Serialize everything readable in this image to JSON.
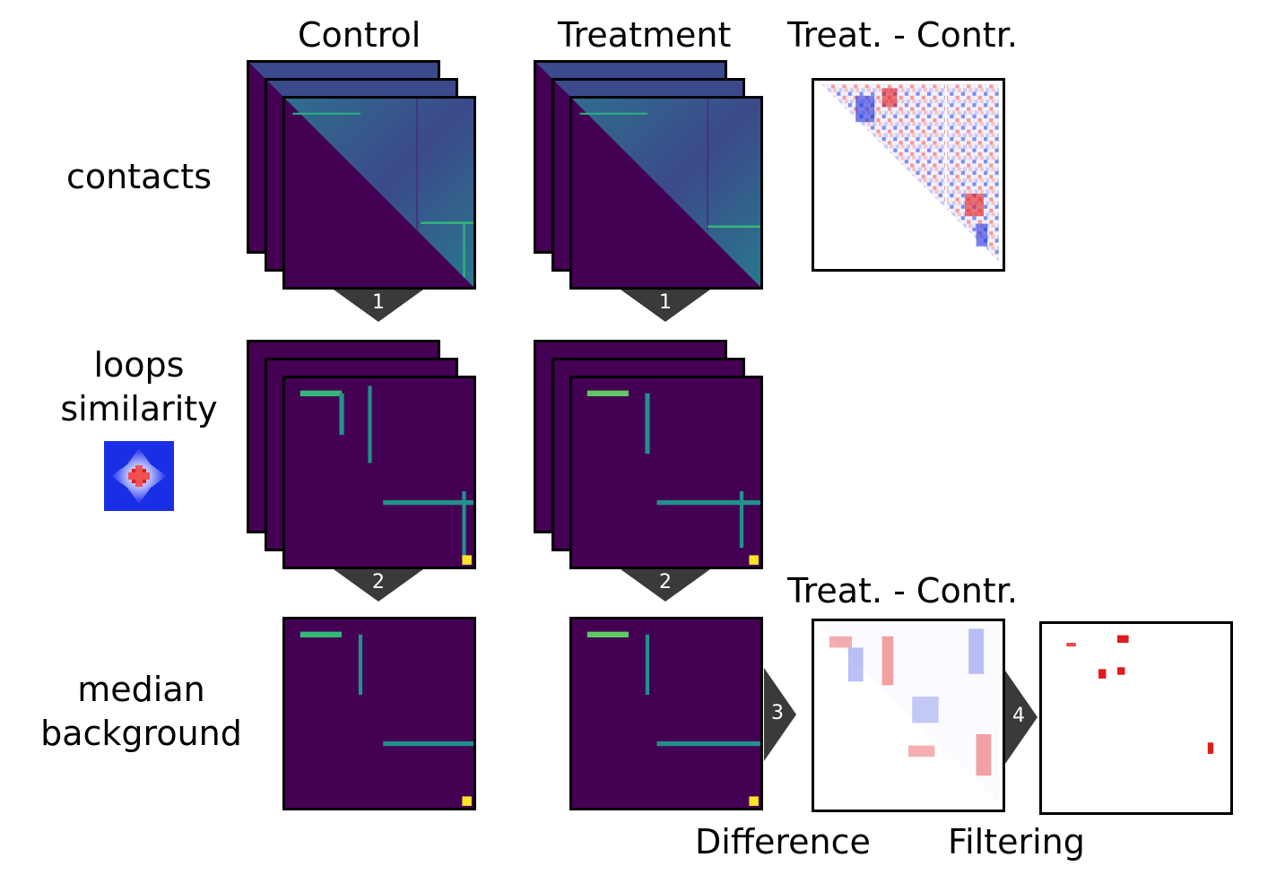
{
  "columns": {
    "control": "Control",
    "treatment": "Treatment",
    "diff_top": "Treat. - Contr.",
    "diff_bottom": "Treat. - Contr."
  },
  "rows": {
    "contacts": "contacts",
    "loops_line1": "loops",
    "loops_line2": "similarity",
    "median_line1": "median",
    "median_line2": "background"
  },
  "captions": {
    "difference": "Difference",
    "filtering": "Filtering"
  },
  "steps": {
    "s1a": "1",
    "s1b": "1",
    "s2a": "2",
    "s2b": "2",
    "s3": "3",
    "s4": "4"
  },
  "colors": {
    "viridis_dark": "#440154",
    "viridis_mid": "#21918c",
    "viridis_green": "#5ec962",
    "viridis_yellow": "#fde725",
    "arrow": "#3a3a3a",
    "red": "#e31a1c",
    "blue": "#2233dd"
  }
}
